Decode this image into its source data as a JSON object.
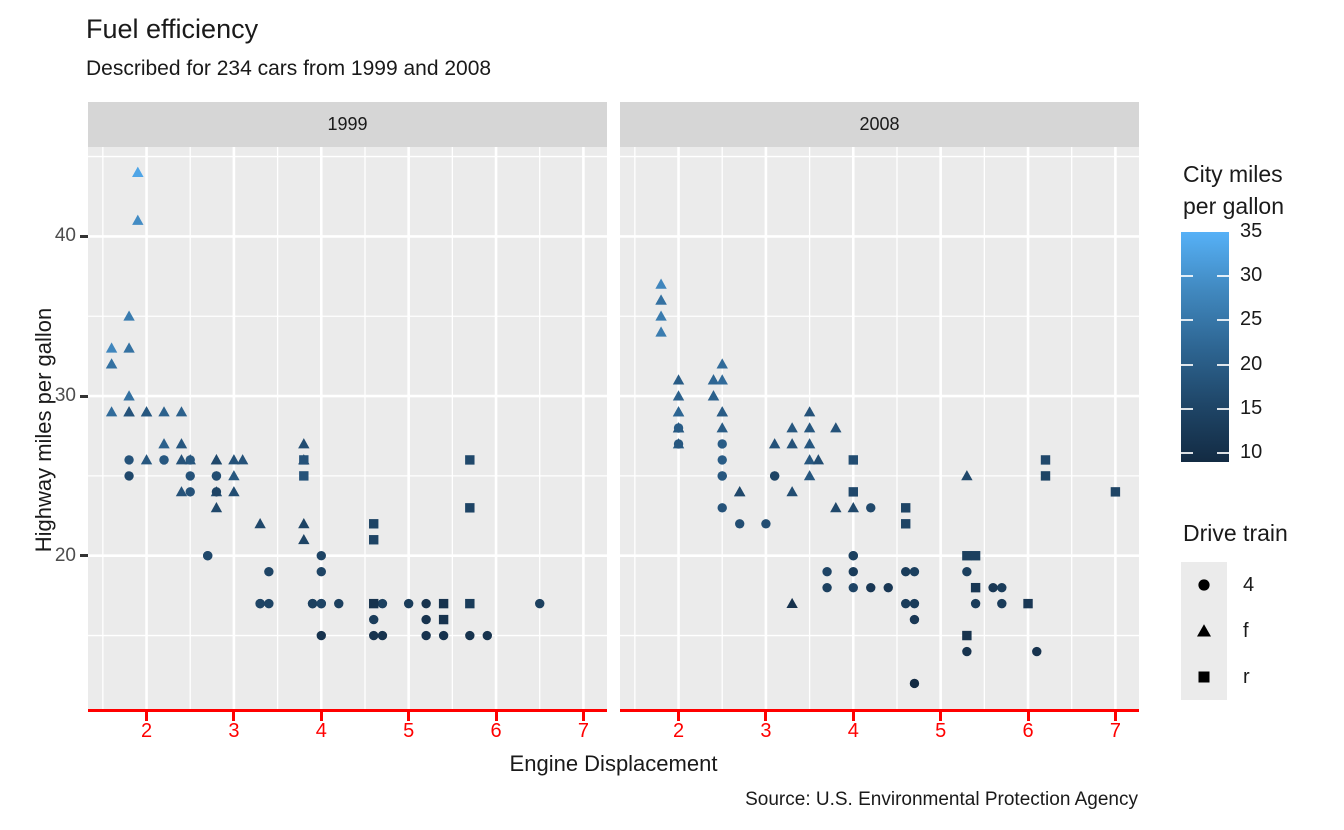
{
  "title": "Fuel efficiency",
  "subtitle": "Described for 234 cars from 1999 and 2008",
  "caption": "Source: U.S. Environmental Protection Agency",
  "chart_data": {
    "type": "scatter",
    "xlabel": "Engine Displacement",
    "ylabel": "Highway miles per gallon",
    "xlim": [
      1.33,
      7.27
    ],
    "ylim": [
      10.4,
      45.6
    ],
    "x_ticks": [
      2,
      3,
      4,
      5,
      6,
      7
    ],
    "x_minor": [
      1.5,
      2.5,
      3.5,
      4.5,
      5.5,
      6.5
    ],
    "y_ticks": [
      20,
      30,
      40
    ],
    "y_minor": [
      15,
      25,
      35,
      45
    ],
    "grid": true,
    "point_encoding": "each point = [engine_displacement_litres, highway_mpg, city_mpg, drive_train]",
    "shape_map": {
      "4": "circle",
      "f": "triangle",
      "r": "square"
    },
    "color_legend": {
      "title_lines": [
        "City miles",
        "per gallon"
      ],
      "domain": [
        9,
        35
      ],
      "ticks": [
        35,
        30,
        25,
        20,
        15,
        10
      ],
      "low": "#132B43",
      "high": "#56B1F7",
      "gradient_stops": [
        "#132B43",
        "#1F4668",
        "#2E6693",
        "#4189C0",
        "#56B1F7"
      ]
    },
    "shape_legend": {
      "title": "Drive train",
      "items": [
        {
          "label": "4",
          "shape": "circle"
        },
        {
          "label": "f",
          "shape": "triangle"
        },
        {
          "label": "r",
          "shape": "square"
        }
      ]
    },
    "colors": {
      "panel_bg": "#EBEBEB",
      "strip_bg": "#D6D6D6",
      "gridline": "#FFFFFF",
      "axis_red": "#FF0000",
      "y_tick_text": "#4D4D4D",
      "text": "#1A1A1A"
    },
    "facets": [
      {
        "label": "1999",
        "points": [
          [
            1.6,
            33,
            28,
            "f"
          ],
          [
            1.6,
            32,
            25,
            "f"
          ],
          [
            1.6,
            32,
            24,
            "f"
          ],
          [
            1.6,
            29,
            23,
            "f"
          ],
          [
            1.8,
            35,
            26,
            "f"
          ],
          [
            1.8,
            33,
            24,
            "f"
          ],
          [
            1.8,
            30,
            24,
            "f"
          ],
          [
            1.8,
            29,
            21,
            "f"
          ],
          [
            1.8,
            29,
            18,
            "f"
          ],
          [
            1.9,
            44,
            35,
            "f"
          ],
          [
            1.9,
            44,
            33,
            "f"
          ],
          [
            1.9,
            41,
            29,
            "f"
          ],
          [
            2.0,
            29,
            21,
            "f"
          ],
          [
            2.0,
            29,
            19,
            "f"
          ],
          [
            2.0,
            26,
            19,
            "f"
          ],
          [
            2.2,
            29,
            21,
            "f"
          ],
          [
            2.2,
            27,
            21,
            "f"
          ],
          [
            2.4,
            29,
            21,
            "f"
          ],
          [
            2.4,
            27,
            19,
            "f"
          ],
          [
            2.4,
            26,
            18,
            "f"
          ],
          [
            2.4,
            24,
            18,
            "f"
          ],
          [
            2.5,
            26,
            18,
            "f"
          ],
          [
            2.8,
            26,
            18,
            "f"
          ],
          [
            2.8,
            26,
            16,
            "f"
          ],
          [
            2.8,
            24,
            17,
            "f"
          ],
          [
            2.8,
            23,
            16,
            "f"
          ],
          [
            3.0,
            26,
            18,
            "f"
          ],
          [
            3.0,
            25,
            19,
            "f"
          ],
          [
            3.0,
            24,
            17,
            "f"
          ],
          [
            3.1,
            26,
            18,
            "f"
          ],
          [
            3.3,
            22,
            16,
            "f"
          ],
          [
            3.8,
            27,
            17,
            "f"
          ],
          [
            3.8,
            26,
            16,
            "f"
          ],
          [
            3.8,
            22,
            15,
            "f"
          ],
          [
            3.8,
            21,
            15,
            "f"
          ],
          [
            1.8,
            26,
            18,
            "4"
          ],
          [
            1.8,
            25,
            16,
            "4"
          ],
          [
            2.2,
            26,
            21,
            "4"
          ],
          [
            2.2,
            26,
            19,
            "4"
          ],
          [
            2.5,
            26,
            19,
            "4"
          ],
          [
            2.5,
            25,
            18,
            "4"
          ],
          [
            2.5,
            24,
            18,
            "4"
          ],
          [
            2.7,
            20,
            15,
            "4"
          ],
          [
            2.7,
            20,
            16,
            "4"
          ],
          [
            2.8,
            25,
            15,
            "4"
          ],
          [
            2.8,
            25,
            17,
            "4"
          ],
          [
            2.8,
            24,
            15,
            "4"
          ],
          [
            3.3,
            17,
            14,
            "4"
          ],
          [
            3.3,
            17,
            15,
            "4"
          ],
          [
            3.4,
            19,
            15,
            "4"
          ],
          [
            3.4,
            17,
            15,
            "4"
          ],
          [
            3.9,
            17,
            13,
            "4"
          ],
          [
            3.9,
            17,
            14,
            "4"
          ],
          [
            4.0,
            20,
            15,
            "4"
          ],
          [
            4.0,
            19,
            15,
            "4"
          ],
          [
            4.0,
            17,
            14,
            "4"
          ],
          [
            4.0,
            17,
            15,
            "4"
          ],
          [
            4.0,
            15,
            11,
            "4"
          ],
          [
            4.2,
            17,
            14,
            "4"
          ],
          [
            4.6,
            16,
            13,
            "4"
          ],
          [
            4.6,
            15,
            11,
            "4"
          ],
          [
            4.7,
            17,
            14,
            "4"
          ],
          [
            4.7,
            15,
            11,
            "4"
          ],
          [
            5.0,
            17,
            13,
            "4"
          ],
          [
            5.2,
            17,
            11,
            "4"
          ],
          [
            5.2,
            16,
            11,
            "4"
          ],
          [
            5.2,
            15,
            11,
            "4"
          ],
          [
            5.4,
            15,
            11,
            "4"
          ],
          [
            5.7,
            15,
            11,
            "4"
          ],
          [
            5.9,
            15,
            11,
            "4"
          ],
          [
            6.5,
            17,
            14,
            "4"
          ],
          [
            3.8,
            26,
            18,
            "r"
          ],
          [
            3.8,
            25,
            18,
            "r"
          ],
          [
            4.6,
            22,
            15,
            "r"
          ],
          [
            4.6,
            21,
            15,
            "r"
          ],
          [
            4.6,
            17,
            11,
            "r"
          ],
          [
            5.4,
            17,
            11,
            "r"
          ],
          [
            5.4,
            16,
            11,
            "r"
          ],
          [
            5.7,
            26,
            16,
            "r"
          ],
          [
            5.7,
            23,
            15,
            "r"
          ],
          [
            5.7,
            17,
            13,
            "r"
          ]
        ]
      },
      {
        "label": "2008",
        "points": [
          [
            1.8,
            37,
            28,
            "f"
          ],
          [
            1.8,
            36,
            25,
            "f"
          ],
          [
            1.8,
            36,
            24,
            "f"
          ],
          [
            1.8,
            35,
            26,
            "f"
          ],
          [
            1.8,
            34,
            26,
            "f"
          ],
          [
            2.0,
            31,
            20,
            "f"
          ],
          [
            2.0,
            30,
            21,
            "f"
          ],
          [
            2.0,
            29,
            21,
            "f"
          ],
          [
            2.0,
            29,
            22,
            "f"
          ],
          [
            2.0,
            28,
            20,
            "f"
          ],
          [
            2.0,
            28,
            19,
            "f"
          ],
          [
            2.0,
            27,
            20,
            "f"
          ],
          [
            2.4,
            31,
            21,
            "f"
          ],
          [
            2.4,
            31,
            22,
            "f"
          ],
          [
            2.4,
            30,
            22,
            "f"
          ],
          [
            2.4,
            30,
            21,
            "f"
          ],
          [
            2.5,
            32,
            23,
            "f"
          ],
          [
            2.5,
            31,
            23,
            "f"
          ],
          [
            2.5,
            29,
            21,
            "f"
          ],
          [
            2.5,
            29,
            20,
            "f"
          ],
          [
            2.5,
            28,
            20,
            "f"
          ],
          [
            2.7,
            24,
            17,
            "f"
          ],
          [
            2.7,
            24,
            16,
            "f"
          ],
          [
            3.1,
            27,
            18,
            "f"
          ],
          [
            3.3,
            28,
            19,
            "f"
          ],
          [
            3.3,
            27,
            18,
            "f"
          ],
          [
            3.3,
            24,
            17,
            "f"
          ],
          [
            3.3,
            17,
            11,
            "f"
          ],
          [
            3.5,
            29,
            18,
            "f"
          ],
          [
            3.5,
            28,
            19,
            "f"
          ],
          [
            3.5,
            27,
            19,
            "f"
          ],
          [
            3.5,
            26,
            19,
            "f"
          ],
          [
            3.5,
            25,
            19,
            "f"
          ],
          [
            3.6,
            26,
            17,
            "f"
          ],
          [
            3.8,
            28,
            18,
            "f"
          ],
          [
            3.8,
            23,
            16,
            "f"
          ],
          [
            4.0,
            23,
            16,
            "f"
          ],
          [
            5.3,
            25,
            16,
            "f"
          ],
          [
            2.0,
            28,
            20,
            "4"
          ],
          [
            2.0,
            27,
            19,
            "4"
          ],
          [
            2.5,
            27,
            20,
            "4"
          ],
          [
            2.5,
            26,
            20,
            "4"
          ],
          [
            2.5,
            25,
            20,
            "4"
          ],
          [
            2.5,
            25,
            19,
            "4"
          ],
          [
            2.5,
            23,
            18,
            "4"
          ],
          [
            2.7,
            22,
            17,
            "4"
          ],
          [
            3.0,
            22,
            17,
            "4"
          ],
          [
            3.1,
            25,
            17,
            "4"
          ],
          [
            3.1,
            25,
            15,
            "4"
          ],
          [
            3.7,
            19,
            15,
            "4"
          ],
          [
            3.7,
            18,
            14,
            "4"
          ],
          [
            4.0,
            20,
            16,
            "4"
          ],
          [
            4.0,
            20,
            14,
            "4"
          ],
          [
            4.0,
            19,
            13,
            "4"
          ],
          [
            4.0,
            18,
            15,
            "4"
          ],
          [
            4.2,
            23,
            16,
            "4"
          ],
          [
            4.2,
            18,
            12,
            "4"
          ],
          [
            4.4,
            18,
            12,
            "4"
          ],
          [
            4.6,
            19,
            13,
            "4"
          ],
          [
            4.6,
            17,
            13,
            "4"
          ],
          [
            4.7,
            19,
            14,
            "4"
          ],
          [
            4.7,
            17,
            13,
            "4"
          ],
          [
            4.7,
            16,
            12,
            "4"
          ],
          [
            4.7,
            12,
            9,
            "4"
          ],
          [
            5.3,
            19,
            14,
            "4"
          ],
          [
            5.3,
            14,
            11,
            "4"
          ],
          [
            5.4,
            17,
            13,
            "4"
          ],
          [
            5.6,
            18,
            12,
            "4"
          ],
          [
            5.7,
            18,
            13,
            "4"
          ],
          [
            5.7,
            17,
            13,
            "4"
          ],
          [
            6.1,
            14,
            11,
            "4"
          ],
          [
            4.0,
            26,
            17,
            "r"
          ],
          [
            4.0,
            24,
            16,
            "r"
          ],
          [
            4.6,
            23,
            15,
            "r"
          ],
          [
            4.6,
            22,
            15,
            "r"
          ],
          [
            5.3,
            20,
            14,
            "r"
          ],
          [
            5.3,
            15,
            11,
            "r"
          ],
          [
            5.4,
            20,
            14,
            "r"
          ],
          [
            5.4,
            18,
            12,
            "r"
          ],
          [
            6.0,
            17,
            12,
            "r"
          ],
          [
            6.2,
            26,
            16,
            "r"
          ],
          [
            6.2,
            25,
            15,
            "r"
          ],
          [
            7.0,
            24,
            15,
            "r"
          ]
        ]
      }
    ]
  }
}
